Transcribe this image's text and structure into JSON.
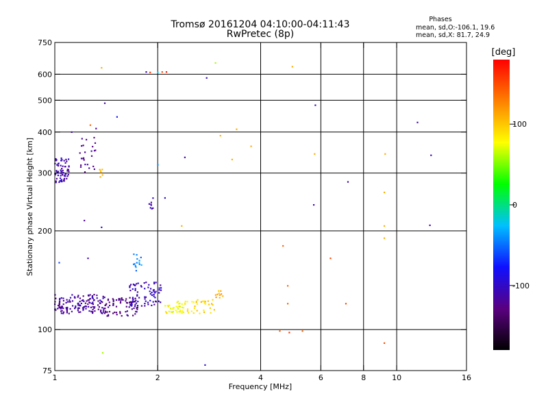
{
  "chart_data": {
    "type": "scatter",
    "title": "Tromsø 20161204 04:10:00-04:11:43",
    "subtitle": "RwPretec (8p)",
    "phases_info": {
      "heading": "Phases",
      "line1": "mean, sd,O:-106.1, 19.6",
      "line2": "mean, sd,X:  81.7, 24.9"
    },
    "xlabel": "Frequency [MHz]",
    "ylabel": "Stationary phase Virtual Height [km]",
    "x_scale": "log",
    "y_scale": "log",
    "xlim": [
      1,
      16
    ],
    "ylim": [
      75,
      750
    ],
    "x_ticks": [
      {
        "value": 1,
        "label": "1"
      },
      {
        "value": 2,
        "label": "2"
      },
      {
        "value": 4,
        "label": "4"
      },
      {
        "value": 6,
        "label": "6"
      },
      {
        "value": 8,
        "label": "8"
      },
      {
        "value": 10,
        "label": "10"
      },
      {
        "value": 16,
        "label": "16"
      }
    ],
    "x_gridlines": [
      2,
      4,
      6,
      8,
      10
    ],
    "y_ticks": [
      {
        "value": 75,
        "label": "75"
      },
      {
        "value": 100,
        "label": "100"
      },
      {
        "value": 200,
        "label": "200"
      },
      {
        "value": 300,
        "label": "300"
      },
      {
        "value": 400,
        "label": "400"
      },
      {
        "value": 500,
        "label": "500"
      },
      {
        "value": 600,
        "label": "600"
      },
      {
        "value": 750,
        "label": "750"
      }
    ],
    "y_gridlines": [
      100,
      200,
      300,
      400,
      500,
      600
    ],
    "grid": true,
    "colorbar": {
      "label": "[deg]",
      "range": [
        -180,
        180
      ],
      "ticks": [
        {
          "value": 100,
          "label": "100"
        },
        {
          "value": 0,
          "label": "0"
        },
        {
          "value": -100,
          "label": "-100"
        }
      ],
      "colors": [
        "#000000",
        "#5a0080",
        "#1010ff",
        "#00c0ff",
        "#00ff00",
        "#ffff00",
        "#ff8000",
        "#ff0000"
      ]
    },
    "point_groups": [
      {
        "x": [
          1.0,
          1.1
        ],
        "y": [
          280,
          335
        ],
        "phase": -110,
        "count": 70
      },
      {
        "x": [
          1.18,
          1.32
        ],
        "y": [
          300,
          390
        ],
        "phase": -120,
        "count": 25
      },
      {
        "x": [
          1.0,
          1.4
        ],
        "y": [
          112,
          128
        ],
        "phase": -115,
        "count": 150
      },
      {
        "x": [
          1.4,
          1.75
        ],
        "y": [
          110,
          125
        ],
        "phase": -125,
        "count": 70
      },
      {
        "x": [
          1.65,
          2.05
        ],
        "y": [
          118,
          140
        ],
        "phase": -105,
        "count": 80
      },
      {
        "x": [
          1.7,
          1.8
        ],
        "y": [
          150,
          170
        ],
        "phase": -40,
        "count": 15
      },
      {
        "x": [
          1.88,
          1.95
        ],
        "y": [
          232,
          252
        ],
        "phase": -110,
        "count": 8
      },
      {
        "x": [
          2.1,
          2.55
        ],
        "y": [
          112,
          122
        ],
        "phase": 80,
        "count": 50
      },
      {
        "x": [
          2.55,
          2.95
        ],
        "y": [
          112,
          125
        ],
        "phase": 95,
        "count": 25
      },
      {
        "x": [
          2.95,
          3.1
        ],
        "y": [
          125,
          132
        ],
        "phase": 110,
        "count": 10
      },
      {
        "x": [
          1.35,
          1.38
        ],
        "y": [
          290,
          310
        ],
        "phase": 100,
        "count": 6
      }
    ],
    "points": [
      {
        "x": 1.03,
        "y": 160,
        "phase": -60
      },
      {
        "x": 1.12,
        "y": 400,
        "phase": -110
      },
      {
        "x": 1.22,
        "y": 215,
        "phase": -120
      },
      {
        "x": 1.25,
        "y": 165,
        "phase": -110
      },
      {
        "x": 1.27,
        "y": 420,
        "phase": 140
      },
      {
        "x": 1.32,
        "y": 410,
        "phase": -120
      },
      {
        "x": 1.37,
        "y": 205,
        "phase": -100
      },
      {
        "x": 1.37,
        "y": 628,
        "phase": 110
      },
      {
        "x": 1.4,
        "y": 490,
        "phase": -110
      },
      {
        "x": 1.38,
        "y": 85,
        "phase": 60
      },
      {
        "x": 1.52,
        "y": 445,
        "phase": -80
      },
      {
        "x": 1.85,
        "y": 610,
        "phase": -110
      },
      {
        "x": 1.9,
        "y": 608,
        "phase": 160
      },
      {
        "x": 2.0,
        "y": 608,
        "phase": -20
      },
      {
        "x": 2.06,
        "y": 610,
        "phase": 150
      },
      {
        "x": 2.12,
        "y": 610,
        "phase": 170
      },
      {
        "x": 2.1,
        "y": 252,
        "phase": -100
      },
      {
        "x": 2.0,
        "y": 318,
        "phase": -40
      },
      {
        "x": 2.35,
        "y": 207,
        "phase": 110
      },
      {
        "x": 2.4,
        "y": 335,
        "phase": -110
      },
      {
        "x": 2.75,
        "y": 78,
        "phase": -100
      },
      {
        "x": 2.78,
        "y": 585,
        "phase": -100
      },
      {
        "x": 2.95,
        "y": 650,
        "phase": 60
      },
      {
        "x": 3.05,
        "y": 390,
        "phase": 110
      },
      {
        "x": 3.3,
        "y": 330,
        "phase": 110
      },
      {
        "x": 3.4,
        "y": 408,
        "phase": 110
      },
      {
        "x": 3.75,
        "y": 362,
        "phase": 110
      },
      {
        "x": 4.55,
        "y": 99,
        "phase": 140
      },
      {
        "x": 4.65,
        "y": 180,
        "phase": 140
      },
      {
        "x": 4.8,
        "y": 120,
        "phase": 140
      },
      {
        "x": 4.8,
        "y": 136,
        "phase": 140
      },
      {
        "x": 4.85,
        "y": 98,
        "phase": 160
      },
      {
        "x": 4.95,
        "y": 633,
        "phase": 110
      },
      {
        "x": 5.3,
        "y": 99,
        "phase": 140
      },
      {
        "x": 5.72,
        "y": 240,
        "phase": -110
      },
      {
        "x": 5.75,
        "y": 343,
        "phase": 110
      },
      {
        "x": 5.78,
        "y": 483,
        "phase": -110
      },
      {
        "x": 6.4,
        "y": 165,
        "phase": 150
      },
      {
        "x": 7.2,
        "y": 282,
        "phase": -110
      },
      {
        "x": 7.1,
        "y": 120,
        "phase": 150
      },
      {
        "x": 9.2,
        "y": 91,
        "phase": 150
      },
      {
        "x": 9.2,
        "y": 190,
        "phase": 110
      },
      {
        "x": 9.2,
        "y": 207,
        "phase": 110
      },
      {
        "x": 9.2,
        "y": 262,
        "phase": 110
      },
      {
        "x": 9.25,
        "y": 343,
        "phase": 110
      },
      {
        "x": 11.5,
        "y": 428,
        "phase": -110
      },
      {
        "x": 12.5,
        "y": 208,
        "phase": -110
      },
      {
        "x": 12.6,
        "y": 340,
        "phase": -110
      }
    ]
  }
}
